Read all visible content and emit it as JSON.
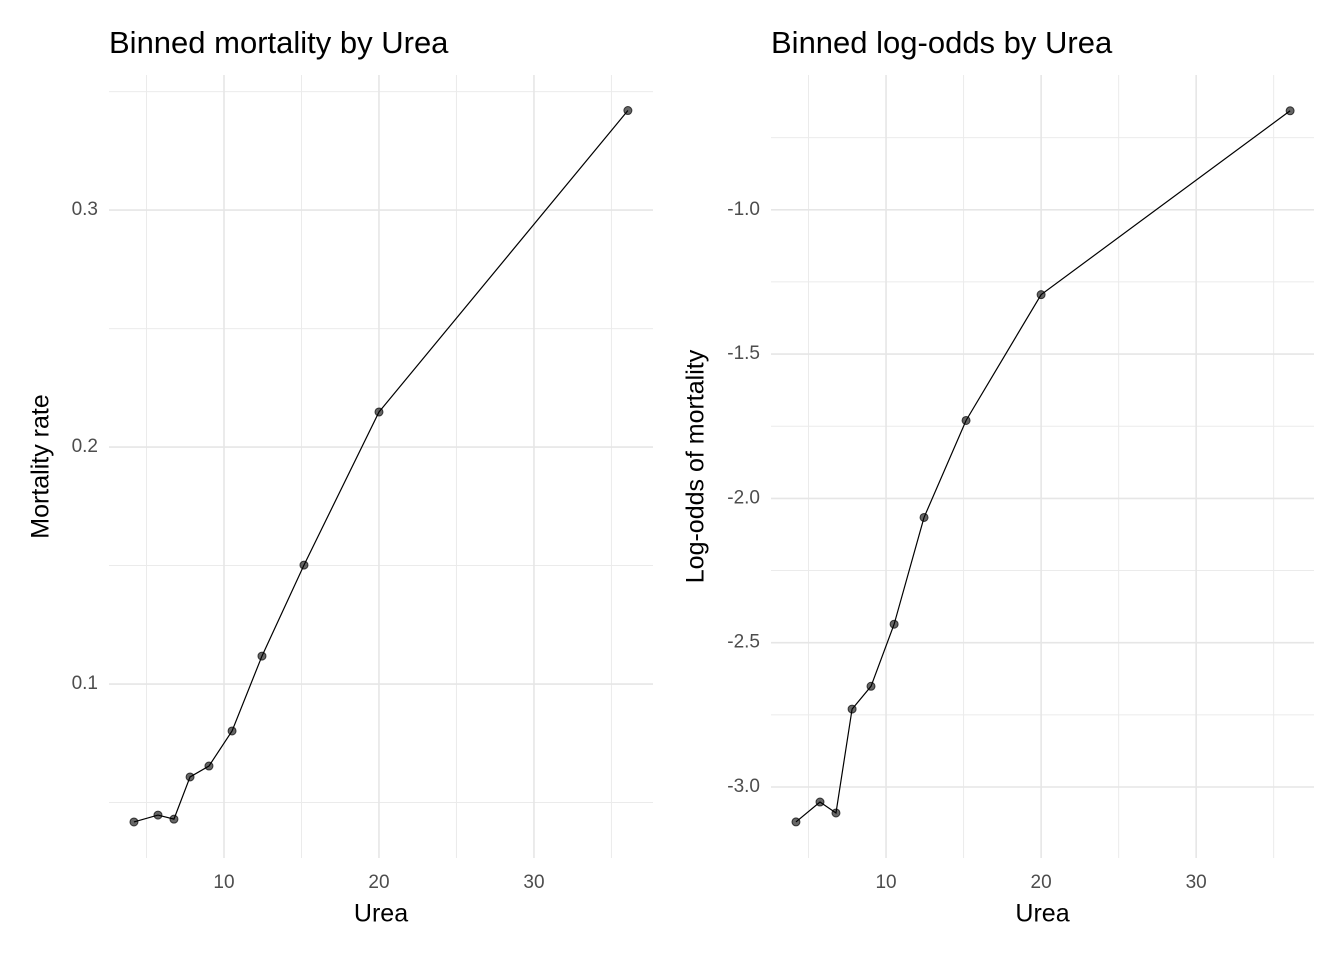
{
  "chart_data": [
    {
      "type": "line",
      "title": "Binned mortality by Urea",
      "x_label": "Urea",
      "y_label": "Mortality rate",
      "x": [
        4.19,
        5.74,
        6.77,
        7.81,
        9.03,
        10.52,
        12.45,
        15.16,
        20.0,
        36.06
      ],
      "series": [
        {
          "color": "#000000",
          "values": [
            0.0418,
            0.0447,
            0.043,
            0.0608,
            0.0654,
            0.0802,
            0.1118,
            0.1502,
            0.2148,
            0.342
          ]
        }
      ],
      "xlim": [
        2.58,
        37.68
      ],
      "xticks": [
        10,
        20,
        30
      ],
      "minor_xticks": [
        5,
        15,
        25,
        35
      ],
      "ylim": [
        0.0266,
        0.357
      ],
      "yticks": [
        0.1,
        0.2,
        0.3
      ],
      "minor_yticks": [
        0.05,
        0.15,
        0.25,
        0.35
      ],
      "grid": true
    },
    {
      "type": "line",
      "title": "Binned log-odds by Urea",
      "x_label": "Urea",
      "y_label": "Log-odds of mortality",
      "x": [
        4.19,
        5.74,
        6.77,
        7.81,
        9.03,
        10.52,
        12.45,
        15.16,
        20.0,
        36.06
      ],
      "series": [
        {
          "color": "#000000",
          "values": [
            -3.121,
            -3.052,
            -3.09,
            -2.73,
            -2.651,
            -2.436,
            -2.066,
            -1.73,
            -1.294,
            -0.657
          ]
        }
      ],
      "xlim": [
        2.58,
        37.6
      ],
      "xticks": [
        10,
        20,
        30
      ],
      "minor_xticks": [
        5,
        15,
        25,
        35
      ],
      "ylim": [
        -3.246,
        -0.533
      ],
      "yticks": [
        {
          "value": -3.0,
          "label": "-3.0"
        },
        {
          "value": -2.5,
          "label": "-2.5"
        },
        {
          "value": -2.0,
          "label": "-2.0"
        },
        {
          "value": -1.5,
          "label": "-1.5"
        },
        {
          "value": -1.0,
          "label": "-1.0"
        }
      ],
      "minor_yticks": [
        -2.75,
        -2.25,
        -1.75,
        -1.25,
        -0.75
      ],
      "grid": true
    }
  ]
}
